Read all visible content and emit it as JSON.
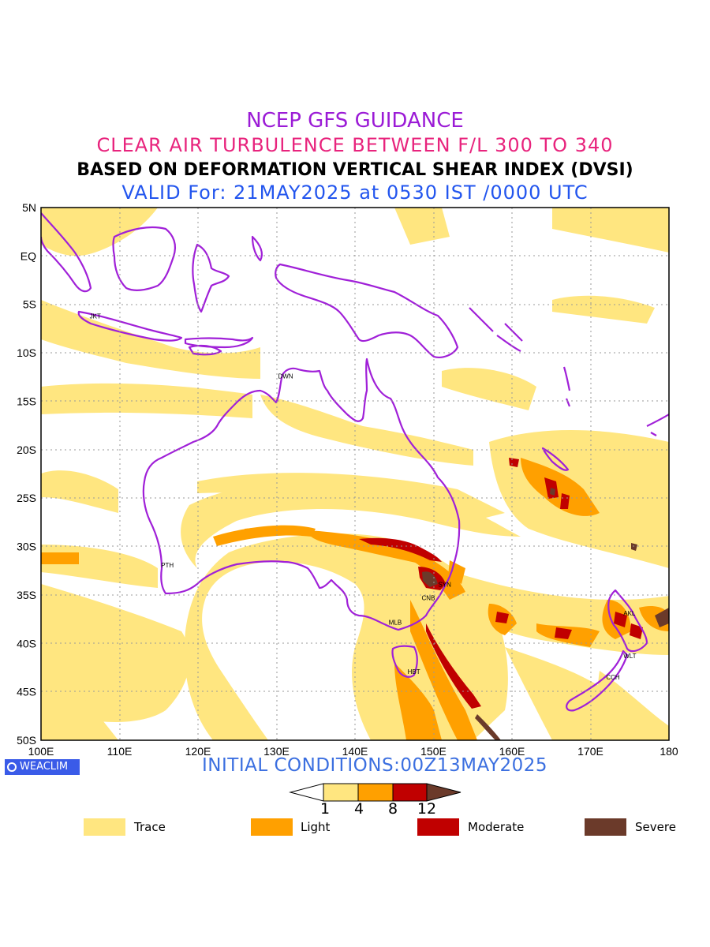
{
  "titles": {
    "line1": "NCEP GFS GUIDANCE",
    "line2": "CLEAR AIR TURBULENCE BETWEEN F/L 300 TO 340",
    "line3": "BASED ON DEFORMATION VERTICAL SHEAR INDEX (DVSI)",
    "line4": "VALID For: 21MAY2025 at 0530 IST /0000 UTC"
  },
  "colors": {
    "title1": "#9b1bd6",
    "title2": "#e8247d",
    "title3": "#000000",
    "title4": "#2255ee",
    "coast": "#a020d8",
    "trace": "#ffe680",
    "light": "#ffa000",
    "moderate": "#c00000",
    "severe": "#6b3a2a",
    "grid": "#999999",
    "initial": "#3b6fe0"
  },
  "map": {
    "lat_labels": [
      "5N",
      "EQ",
      "5S",
      "10S",
      "15S",
      "20S",
      "25S",
      "30S",
      "35S",
      "40S",
      "45S",
      "50S"
    ],
    "lon_labels": [
      "100E",
      "110E",
      "120E",
      "130E",
      "140E",
      "150E",
      "160E",
      "170E",
      "180"
    ],
    "lat_range": [
      5,
      -50
    ],
    "lon_range": [
      100,
      180
    ],
    "stations": [
      {
        "code": "JKT",
        "lon": 106.8,
        "lat": -6.2
      },
      {
        "code": "DWN",
        "lon": 130.8,
        "lat": -12.4
      },
      {
        "code": "PTH",
        "lon": 115.9,
        "lat": -31.9
      },
      {
        "code": "SYN",
        "lon": 151.2,
        "lat": -33.9
      },
      {
        "code": "CNB",
        "lon": 149.1,
        "lat": -35.3
      },
      {
        "code": "MLB",
        "lon": 144.9,
        "lat": -37.8
      },
      {
        "code": "HBT",
        "lon": 147.3,
        "lat": -42.9
      },
      {
        "code": "AKL",
        "lon": 174.8,
        "lat": -36.9
      },
      {
        "code": "WLT",
        "lon": 174.8,
        "lat": -41.3
      },
      {
        "code": "CCH",
        "lon": 172.6,
        "lat": -43.5
      }
    ]
  },
  "logo": "WEACLIM",
  "initial_conditions": "INITIAL CONDITIONS:00Z13MAY2025",
  "colorbar": {
    "ticks": [
      "1",
      "4",
      "8",
      "12"
    ]
  },
  "legend": [
    {
      "label": "Trace",
      "color": "#ffe680"
    },
    {
      "label": "Light",
      "color": "#ffa000"
    },
    {
      "label": "Moderate",
      "color": "#c00000"
    },
    {
      "label": "Severe",
      "color": "#6b3a2a"
    }
  ]
}
